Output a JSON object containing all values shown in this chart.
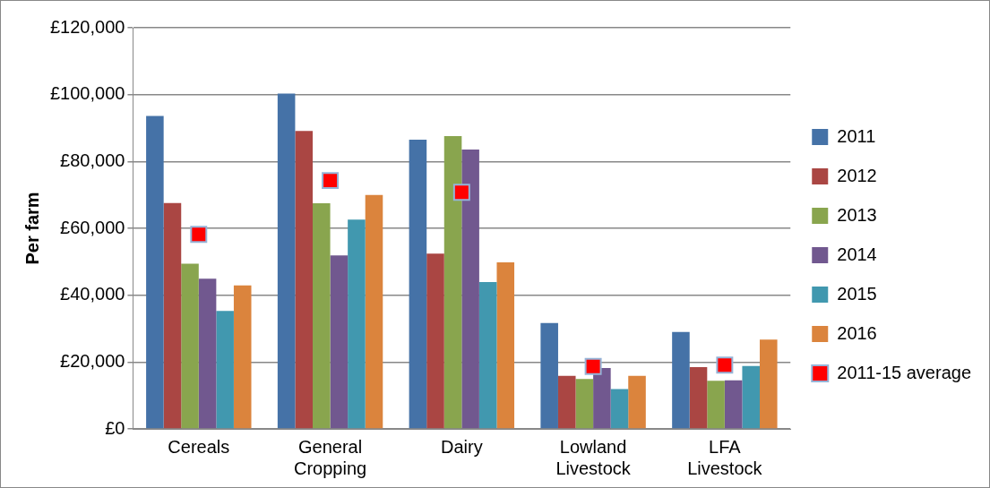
{
  "chart_data": {
    "type": "bar",
    "ylabel": "Per farm",
    "categories": [
      "Cereals",
      "General Cropping",
      "Dairy",
      "Lowland Livestock",
      "LFA Livestock"
    ],
    "series": [
      {
        "name": "2011",
        "color": "#4572a7",
        "values": [
          93600,
          100300,
          86500,
          31700,
          29000
        ]
      },
      {
        "name": "2012",
        "color": "#aa4643",
        "values": [
          67600,
          89100,
          52400,
          15900,
          18500
        ]
      },
      {
        "name": "2013",
        "color": "#89a54e",
        "values": [
          49400,
          67500,
          87600,
          14900,
          14400
        ]
      },
      {
        "name": "2014",
        "color": "#71588f",
        "values": [
          44900,
          51900,
          83600,
          18200,
          14500
        ]
      },
      {
        "name": "2015",
        "color": "#4198af",
        "values": [
          35300,
          62600,
          43900,
          11900,
          18800
        ]
      },
      {
        "name": "2016",
        "color": "#db843d",
        "values": [
          42900,
          70000,
          49800,
          15900,
          26700
        ]
      },
      {
        "name": "2011-15 average",
        "type": "scatter",
        "color": "#ff0000",
        "marker": "square",
        "values": [
          58200,
          74300,
          70800,
          18700,
          19100
        ]
      }
    ],
    "ylim": [
      0,
      120000
    ],
    "yticks": [
      {
        "value": 0,
        "label": "£0"
      },
      {
        "value": 20000,
        "label": "£20,000"
      },
      {
        "value": 40000,
        "label": "£40,000"
      },
      {
        "value": 60000,
        "label": "£60,000"
      },
      {
        "value": 80000,
        "label": "£80,000"
      },
      {
        "value": 100000,
        "label": "£100,000"
      },
      {
        "value": 120000,
        "label": "£120,000"
      }
    ],
    "grid": "y",
    "legend": "right"
  }
}
